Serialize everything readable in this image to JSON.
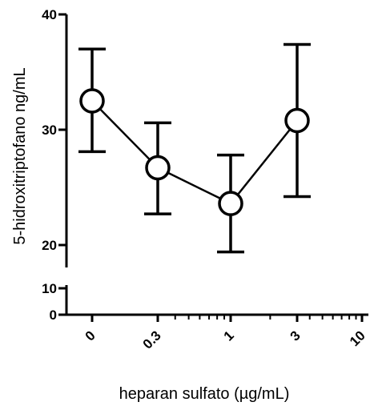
{
  "chart_data": {
    "type": "line",
    "xlabel": "heparan sulfato (µg/mL)",
    "ylabel": "5-hidroxitriptofano ng/mL",
    "x_scale": "log",
    "x_tick_labels": [
      "0",
      "0.3",
      "1",
      "3",
      "10"
    ],
    "y_scale": "broken",
    "y_segments": [
      {
        "range": [
          0,
          10
        ],
        "ticks": [
          "0",
          "10"
        ]
      },
      {
        "range": [
          18,
          40
        ],
        "ticks": [
          "20",
          "30",
          "40"
        ]
      }
    ],
    "grid": false,
    "series": [
      {
        "x": [
          "0",
          "0.3",
          "1",
          "3"
        ],
        "y": [
          32.5,
          26.7,
          23.6,
          30.8
        ],
        "error_upper": [
          37.0,
          30.6,
          27.8,
          37.4
        ],
        "error_lower": [
          28.1,
          22.7,
          19.4,
          24.2
        ],
        "marker": "open-circle"
      }
    ]
  }
}
